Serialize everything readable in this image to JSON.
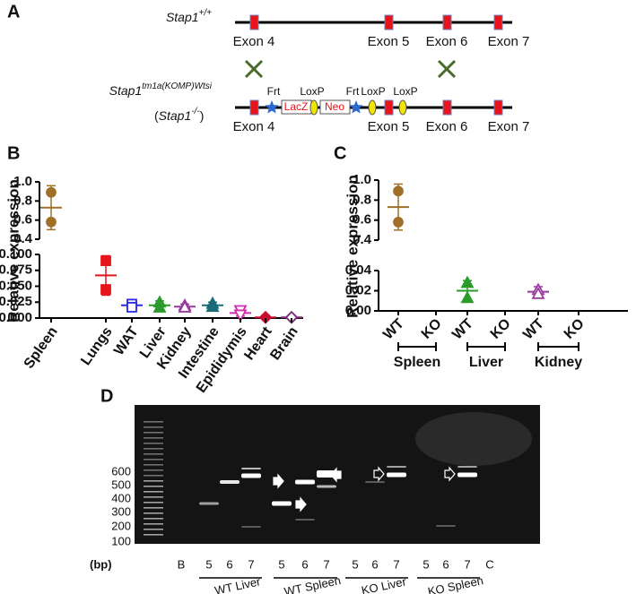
{
  "panel_labels": [
    "A",
    "B",
    "C",
    "D"
  ],
  "diagram": {
    "wt_label": {
      "gene": "Stap1",
      "superscript": "+/+"
    },
    "ko_label": {
      "gene": "Stap1",
      "superscript": "tm1a(KOMP)Wtsi"
    },
    "ko_alias": {
      "prefix": "(",
      "gene": "Stap1",
      "superscript": "-/-",
      "suffix": ")"
    },
    "wt_exons": [
      "Exon 4",
      "Exon 5",
      "Exon 6",
      "Exon 7"
    ],
    "ko_exons": [
      "Exon 4",
      "Exon 5",
      "Exon 6",
      "Exon 7"
    ],
    "elements": [
      "Frt",
      "LoxP",
      "Frt",
      "LoxP",
      "LoxP"
    ],
    "cassettes": [
      "LacZ",
      "Neo"
    ]
  },
  "chart_data": [
    {
      "type": "dot",
      "y_label": "Relative expression",
      "categories": [
        "Spleen",
        "Lungs",
        "WAT",
        "Liver",
        "Kidney",
        "Intestine",
        "Epididymis",
        "Heart",
        "Brain"
      ],
      "points": [
        [
          0.89,
          0.58
        ],
        [
          0.09,
          0.045
        ],
        [
          0.022,
          0.017
        ],
        [
          0.025,
          0.017
        ],
        [
          0.02,
          0.017
        ],
        [
          0.023,
          0.018
        ],
        [
          0.012,
          0.005
        ],
        [
          0.001,
          0.001
        ],
        [
          0.001,
          0.001
        ]
      ],
      "means": [
        0.73,
        0.067,
        0.02,
        0.02,
        0.018,
        0.02,
        0.008,
        0.001,
        0.001
      ],
      "errors": [
        0.23,
        0.031,
        0.007,
        0.007,
        0.004,
        0.005,
        0.005,
        0,
        0
      ],
      "colors": [
        "#a0702a",
        "#e8141c",
        "#2a2ae8",
        "#2a9a2a",
        "#9a3aa0",
        "#1a6a78",
        "#d22cb0",
        "#c8102e",
        "#7a2a7a"
      ],
      "markers": [
        "circle",
        "square",
        "square-open",
        "triangle",
        "triangle-open",
        "triangle",
        "triangle-down-open",
        "diamond",
        "diamond-open"
      ],
      "y_segments": [
        {
          "ylim": [
            0,
            0.1
          ],
          "yticks": [
            {
              "value": 0,
              "label": "0.000"
            },
            0.025,
            {
              "value": 0.05,
              "label": "0.050"
            },
            0.075,
            {
              "value": 0.1,
              "label": "0.100"
            }
          ]
        },
        {
          "ylim": [
            0.4,
            1
          ],
          "yticks": [
            0.4,
            0.6,
            0.8,
            {
              "value": 1,
              "label": "1.0"
            }
          ]
        }
      ]
    },
    {
      "type": "dot",
      "y_label": "Relative expression",
      "categories": [
        "Spleen",
        "Liver",
        "Kidney"
      ],
      "genotypes": [
        "WT",
        "KO"
      ],
      "points": [
        [
          0.89,
          0.58
        ],
        [
          0.028,
          0.013
        ],
        [
          0.021,
          0.017
        ]
      ],
      "means": [
        0.73,
        0.02,
        0.019
      ],
      "errors": [
        0.23,
        0.01,
        0.005
      ],
      "colors": [
        "#a0702a",
        "#2a9a2a",
        "#9a3aa0"
      ],
      "markers": [
        "circle",
        "triangle",
        "triangle-open"
      ],
      "y_segments": [
        {
          "ylim": [
            0,
            0.04
          ],
          "yticks": [
            {
              "value": 0,
              "label": "0.00"
            },
            0.02,
            0.04
          ]
        },
        {
          "ylim": [
            0.4,
            1
          ],
          "yticks": [
            0.4,
            0.6,
            0.8,
            {
              "value": 1,
              "label": "1.0"
            }
          ]
        }
      ]
    }
  ],
  "gel": {
    "ladder": [
      600,
      500,
      400,
      300,
      200,
      100
    ],
    "unit": "(bp)",
    "lanes": [
      "B",
      "5",
      "6",
      "7",
      "5",
      "6",
      "7",
      "5",
      "6",
      "7",
      "5",
      "6",
      "7",
      "C"
    ],
    "groups": [
      "WT Liver",
      "WT Spleen",
      "KO Liver",
      "KO Spleen"
    ]
  }
}
